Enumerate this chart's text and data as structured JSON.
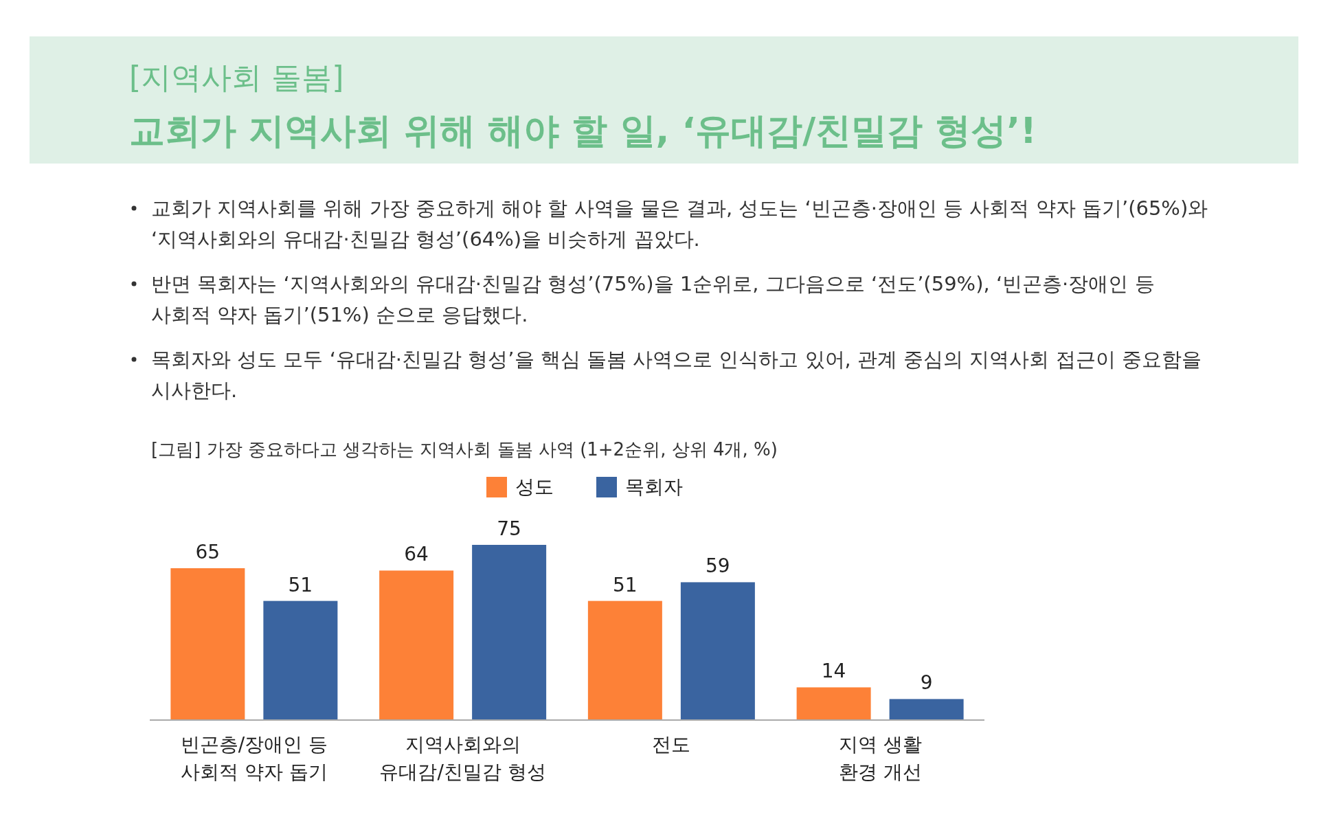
{
  "chart_data": {
    "type": "bar",
    "subtitle": "[지역사회 돌봄]",
    "title": "교회가 지역사회 위해 해야 할 일, ‘유대감/친밀감 형성’!",
    "annotations": [
      "교회가 지역사회를 위해 가장 중요하게 해야 할 사역을 물은 결과, 성도는 ‘빈곤층·장애인 등 사회적 약자 돕기’(65%)와 ‘지역사회와의 유대감·친밀감 형성’(64%)을 비슷하게 꼽았다.",
      "반면 목회자는 ‘지역사회와의 유대감·친밀감 형성’(75%)을 1순위로, 그다음으로 ‘전도’(59%), ‘빈곤층·장애인 등 사회적 약자 돕기’(51%) 순으로 응답했다.",
      "목회자와 성도 모두 ‘유대감·친밀감 형성’을 핵심 돌봄 사역으로 인식하고 있어, 관계 중심의 지역사회 접근이 중요함을 시사한다.",
      "[그림] 가장 중요하다고 생각하는 지역사회 돌봄 사역 (1+2순위, 상위 4개, %)"
    ],
    "categories": [
      "빈곤층/장애인 등\n사회적 약자 돕기",
      "지역사회와의\n유대감/친밀감 형성",
      "전도",
      "지역 생활\n환경 개선"
    ],
    "series": [
      {
        "name": "성도",
        "color": "#fd8137",
        "values": [
          65,
          64,
          51,
          14
        ]
      },
      {
        "name": "목회자",
        "color": "#3a64a0",
        "values": [
          51,
          75,
          59,
          9
        ]
      }
    ],
    "data_labels": true,
    "legend": "top",
    "grid": false
  }
}
